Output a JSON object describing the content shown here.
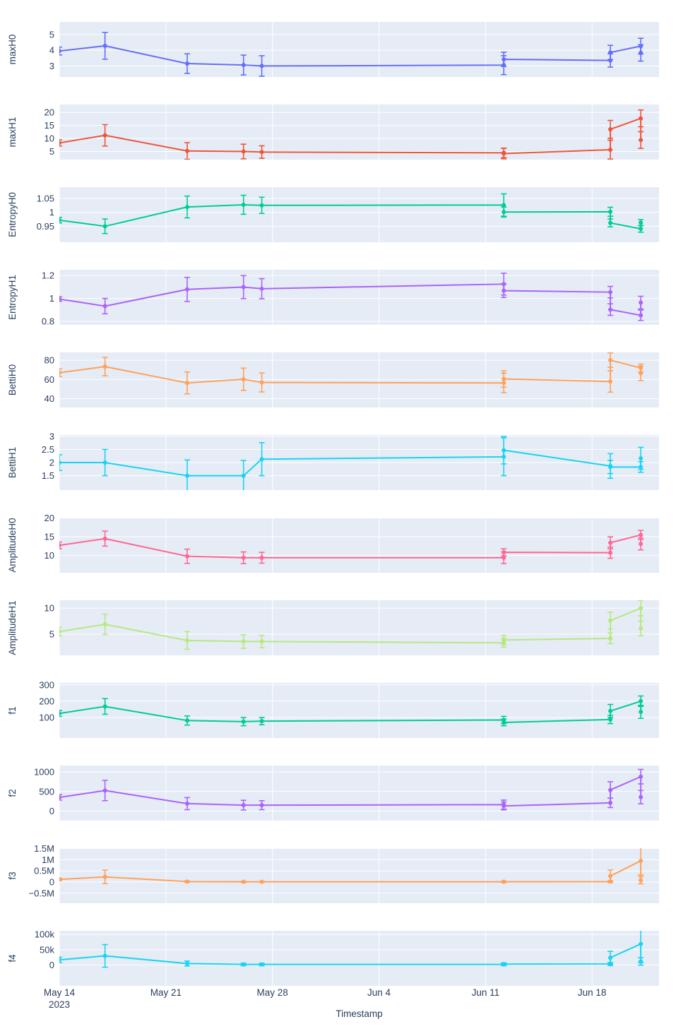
{
  "chart_data": {
    "type": "line",
    "title": "",
    "xlabel": "Timestamp",
    "legend": false,
    "grid": true,
    "error_bars": true,
    "layout": {
      "plot_bg": "#e5ecf6",
      "grid_color": "#ffffff",
      "tick_color": "#2a3f5f",
      "page_bg": "#ffffff"
    },
    "x_axis": {
      "tick_labels": [
        "May 14",
        "May 21",
        "May 28",
        "Jun 4",
        "Jun 11",
        "Jun 18"
      ],
      "tick_days": [
        0,
        7,
        14,
        21,
        28,
        35
      ],
      "year_label": "2023",
      "domain_days": [
        0,
        39.4
      ]
    },
    "x_days": [
      0,
      3.0,
      8.4,
      12.1,
      13.3,
      29.2,
      29.2,
      36.2,
      36.2,
      38.2,
      38.2
    ],
    "x_dates": [
      "2023-05-14",
      "2023-05-17",
      "2023-05-22",
      "2023-05-26",
      "2023-05-27",
      "2023-06-12",
      "2023-06-12",
      "2023-06-19",
      "2023-06-19",
      "2023-06-21",
      "2023-06-21"
    ],
    "subplots": [
      {
        "name": "maxH0",
        "color": "#636efa",
        "y_range": [
          2.3,
          5.8
        ],
        "y_ticks": [
          {
            "v": 3,
            "label": "3"
          },
          {
            "v": 4,
            "label": "4"
          },
          {
            "v": 5,
            "label": "5"
          }
        ],
        "values": [
          3.95,
          4.28,
          3.15,
          3.06,
          3.0,
          3.05,
          3.42,
          3.35,
          3.86,
          4.26,
          3.83
        ],
        "errors": [
          0.25,
          0.85,
          0.62,
          0.63,
          0.65,
          0.6,
          0.45,
          0.42,
          0.45,
          0.5,
          0.52
        ]
      },
      {
        "name": "maxH1",
        "color": "#ef553b",
        "y_range": [
          1.9,
          23
        ],
        "y_ticks": [
          {
            "v": 5,
            "label": "5"
          },
          {
            "v": 10,
            "label": "10"
          },
          {
            "v": 15,
            "label": "15"
          },
          {
            "v": 20,
            "label": "20"
          }
        ],
        "values": [
          8.3,
          11.2,
          5.2,
          5.0,
          4.8,
          4.5,
          4.2,
          5.7,
          13.5,
          17.7,
          9.4
        ],
        "errors": [
          1.2,
          4.1,
          3.2,
          2.8,
          2.4,
          1.8,
          2.0,
          3.6,
          3.4,
          3.2,
          3.2
        ]
      },
      {
        "name": "EntropyH0",
        "color": "#00cc96",
        "y_range": [
          0.893,
          1.09
        ],
        "y_ticks": [
          {
            "v": 0.95,
            "label": "0.95"
          },
          {
            "v": 1,
            "label": "1"
          },
          {
            "v": 1.05,
            "label": "1.05"
          }
        ],
        "values": [
          0.972,
          0.95,
          1.019,
          1.027,
          1.025,
          1.026,
          1.001,
          1.002,
          0.962,
          0.941,
          0.963
        ],
        "errors": [
          0.01,
          0.026,
          0.039,
          0.034,
          0.029,
          0.04,
          0.018,
          0.016,
          0.014,
          0.012,
          0.011
        ]
      },
      {
        "name": "EntropyH1",
        "color": "#ab63fa",
        "y_range": [
          0.77,
          1.25
        ],
        "y_ticks": [
          {
            "v": 0.8,
            "label": "0.8"
          },
          {
            "v": 1,
            "label": "1"
          },
          {
            "v": 1.2,
            "label": "1.2"
          }
        ],
        "values": [
          0.995,
          0.933,
          1.079,
          1.099,
          1.085,
          1.125,
          1.068,
          1.055,
          0.903,
          0.853,
          0.964
        ],
        "errors": [
          0.02,
          0.067,
          0.105,
          0.1,
          0.088,
          0.095,
          0.06,
          0.05,
          0.05,
          0.045,
          0.055
        ]
      },
      {
        "name": "BettiH0",
        "color": "#ffa15a",
        "y_range": [
          31,
          88
        ],
        "y_ticks": [
          {
            "v": 40,
            "label": "40"
          },
          {
            "v": 60,
            "label": "60"
          },
          {
            "v": 80,
            "label": "80"
          }
        ],
        "values": [
          67,
          73.3,
          56.4,
          60.2,
          56.9,
          56.4,
          60.5,
          57.9,
          80,
          71.9,
          66.4
        ],
        "errors": [
          4,
          9.5,
          11.3,
          11.5,
          9.8,
          10,
          8.5,
          11,
          7.5,
          4,
          7.5
        ]
      },
      {
        "name": "BettiH1",
        "color": "#19d3f3",
        "y_range": [
          0.95,
          3.05
        ],
        "y_ticks": [
          {
            "v": 1.5,
            "label": "1.5"
          },
          {
            "v": 2,
            "label": "2"
          },
          {
            "v": 2.5,
            "label": "2.5"
          },
          {
            "v": 3,
            "label": "3"
          }
        ],
        "values": [
          2.0,
          2.0,
          1.5,
          1.5,
          2.13,
          2.22,
          2.47,
          1.87,
          1.83,
          1.83,
          2.16
        ],
        "errors": [
          0.3,
          0.5,
          0.6,
          0.58,
          0.63,
          0.72,
          0.52,
          0.47,
          0.25,
          0.2,
          0.42
        ]
      },
      {
        "name": "AmplitudeH0",
        "color": "#ff6692",
        "y_range": [
          5.4,
          20.1
        ],
        "y_ticks": [
          {
            "v": 10,
            "label": "10"
          },
          {
            "v": 15,
            "label": "15"
          },
          {
            "v": 20,
            "label": "20"
          }
        ],
        "values": [
          12.7,
          14.5,
          9.8,
          9.4,
          9.4,
          9.4,
          10.85,
          10.75,
          13.4,
          15.5,
          13.1
        ],
        "errors": [
          0.9,
          2.0,
          1.9,
          1.55,
          1.45,
          1.55,
          0.95,
          1.5,
          1.6,
          1.2,
          1.6
        ]
      },
      {
        "name": "AmplitudeH1",
        "color": "#b6e880",
        "y_range": [
          0.95,
          11.5
        ],
        "y_ticks": [
          {
            "v": 5,
            "label": "5"
          },
          {
            "v": 10,
            "label": "10"
          }
        ],
        "values": [
          5.5,
          6.9,
          3.8,
          3.6,
          3.6,
          3.35,
          3.9,
          4.2,
          7.6,
          10.0,
          6.1
        ],
        "errors": [
          0.8,
          1.95,
          1.7,
          1.3,
          1.2,
          0.85,
          0.9,
          1.0,
          1.6,
          1.45,
          1.4
        ]
      },
      {
        "name": "f1",
        "color": "#00cc96",
        "y_range": [
          -25,
          312
        ],
        "y_ticks": [
          {
            "v": 100,
            "label": "100"
          },
          {
            "v": 200,
            "label": "200"
          },
          {
            "v": 300,
            "label": "300"
          }
        ],
        "values": [
          125,
          168,
          82,
          75,
          78,
          85,
          70,
          88,
          140,
          200,
          135
        ],
        "errors": [
          18,
          48,
          28,
          25,
          22,
          22,
          20,
          25,
          40,
          32,
          40
        ]
      },
      {
        "name": "f2",
        "color": "#ab63fa",
        "y_range": [
          -245,
          1165
        ],
        "y_ticks": [
          {
            "v": 0,
            "label": "0"
          },
          {
            "v": 500,
            "label": "500"
          },
          {
            "v": 1000,
            "label": "1000"
          }
        ],
        "values": [
          350,
          525,
          190,
          150,
          150,
          165,
          130,
          210,
          540,
          880,
          355
        ],
        "errors": [
          70,
          260,
          155,
          125,
          115,
          115,
          100,
          120,
          210,
          185,
          170
        ]
      },
      {
        "name": "f3",
        "color": "#ffa15a",
        "y_range": [
          -950000,
          1520000
        ],
        "y_ticks": [
          {
            "v": -500000,
            "label": "−0.5M"
          },
          {
            "v": 0,
            "label": "0"
          },
          {
            "v": 500000,
            "label": "0.5M"
          },
          {
            "v": 1000000,
            "label": "1M"
          },
          {
            "v": 1500000,
            "label": "1.5M"
          }
        ],
        "values": [
          120000,
          230000,
          20000,
          10000,
          10000,
          10000,
          15000,
          20000,
          270000,
          950000,
          80000
        ],
        "errors": [
          60000,
          300000,
          30000,
          20000,
          20000,
          20000,
          25000,
          40000,
          270000,
          630000,
          160000
        ]
      },
      {
        "name": "f4",
        "color": "#19d3f3",
        "y_range": [
          -68000,
          112000
        ],
        "y_ticks": [
          {
            "v": 0,
            "label": "0"
          },
          {
            "v": 50000,
            "label": "50k"
          },
          {
            "v": 100000,
            "label": "100k"
          }
        ],
        "values": [
          17000,
          30000,
          5000,
          2000,
          2000,
          2000,
          3000,
          3500,
          24000,
          69000,
          12000
        ],
        "errors": [
          9000,
          37000,
          8000,
          4000,
          4000,
          4000,
          4000,
          5000,
          21000,
          61000,
          12000
        ]
      }
    ]
  }
}
